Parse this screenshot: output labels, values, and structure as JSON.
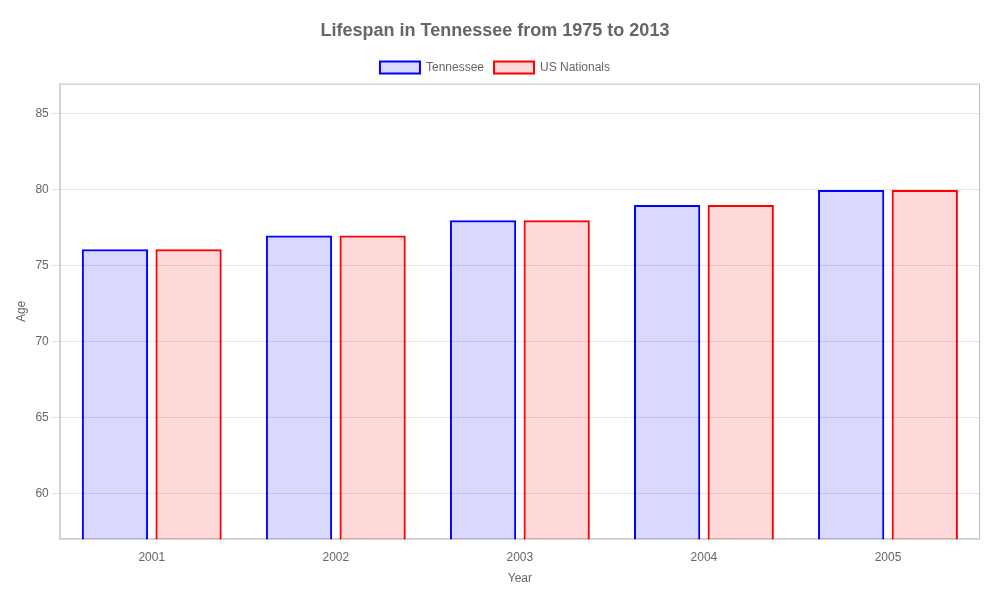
{
  "chart_data": {
    "type": "bar",
    "title": "Lifespan in Tennessee from 1975 to 2013",
    "x_label": "Year",
    "y_label": "Age",
    "categories": [
      "2001",
      "2002",
      "2003",
      "2004",
      "2005"
    ],
    "series": [
      {
        "name": "Tennessee",
        "color": "#0000ff",
        "values": [
          76.1,
          77.0,
          78.0,
          79.0,
          80.0
        ]
      },
      {
        "name": "US Nationals",
        "color": "#ff0000",
        "values": [
          76.1,
          77.0,
          78.0,
          79.0,
          80.0
        ]
      }
    ],
    "ylim": [
      57,
      87
    ],
    "yticks": [
      60,
      65,
      70,
      75,
      80,
      85
    ],
    "grid": true,
    "legend": "top"
  }
}
